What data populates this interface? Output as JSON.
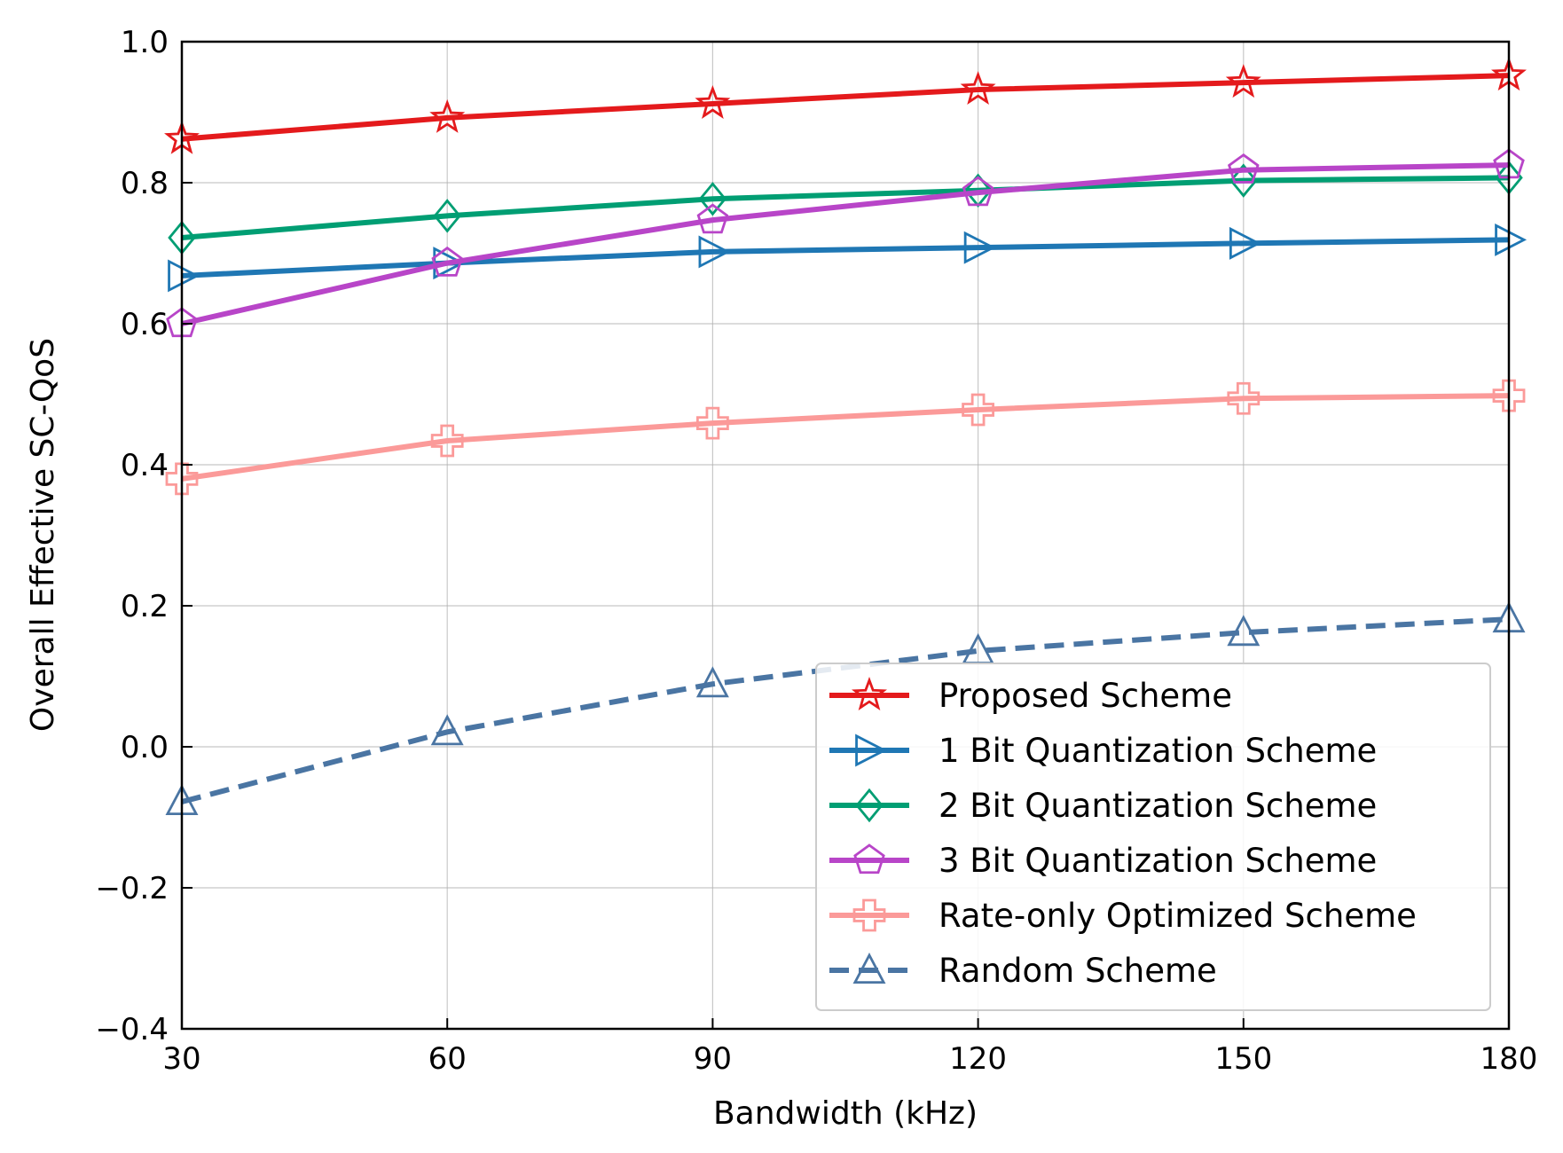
{
  "chart_data": {
    "type": "line",
    "title": "",
    "xlabel": "Bandwidth (kHz)",
    "ylabel": "Overall Effective SC-QoS",
    "x": [
      30,
      60,
      90,
      120,
      150,
      180
    ],
    "xlim": [
      30,
      180
    ],
    "ylim": [
      -0.4,
      1.0
    ],
    "xticks": [
      30,
      60,
      90,
      120,
      150,
      180
    ],
    "xtick_labels": [
      "30",
      "60",
      "90",
      "120",
      "150",
      "180"
    ],
    "yticks": [
      -0.4,
      -0.2,
      0.0,
      0.2,
      0.4,
      0.6,
      0.8,
      1.0
    ],
    "ytick_labels": [
      "−0.4",
      "−0.2",
      "0.0",
      "0.2",
      "0.4",
      "0.6",
      "0.8",
      "1.0"
    ],
    "grid": true,
    "legend_position": "bottom-right",
    "series": [
      {
        "name": "Proposed Scheme",
        "values": [
          0.862,
          0.892,
          0.912,
          0.932,
          0.942,
          0.952
        ],
        "color": "#e41a1c",
        "marker": "star",
        "dashed": false
      },
      {
        "name": "1 Bit Quantization Scheme",
        "values": [
          0.668,
          0.686,
          0.702,
          0.708,
          0.714,
          0.719
        ],
        "color": "#1f77b4",
        "marker": "triangle-right",
        "dashed": false
      },
      {
        "name": "2 Bit Quantization Scheme",
        "values": [
          0.722,
          0.753,
          0.777,
          0.789,
          0.803,
          0.807
        ],
        "color": "#009e73",
        "marker": "diamond",
        "dashed": false
      },
      {
        "name": "3 Bit Quantization Scheme",
        "values": [
          0.6,
          0.686,
          0.747,
          0.786,
          0.818,
          0.825
        ],
        "color": "#b845c8",
        "marker": "pentagon",
        "dashed": false
      },
      {
        "name": "Rate-only Optimized Scheme",
        "values": [
          0.38,
          0.434,
          0.459,
          0.478,
          0.494,
          0.498
        ],
        "color": "#fb9a99",
        "marker": "plus-filled",
        "dashed": false
      },
      {
        "name": "Random Scheme",
        "values": [
          -0.078,
          0.021,
          0.089,
          0.136,
          0.162,
          0.181
        ],
        "color": "#4a75a3",
        "marker": "triangle-up",
        "dashed": true
      }
    ]
  }
}
